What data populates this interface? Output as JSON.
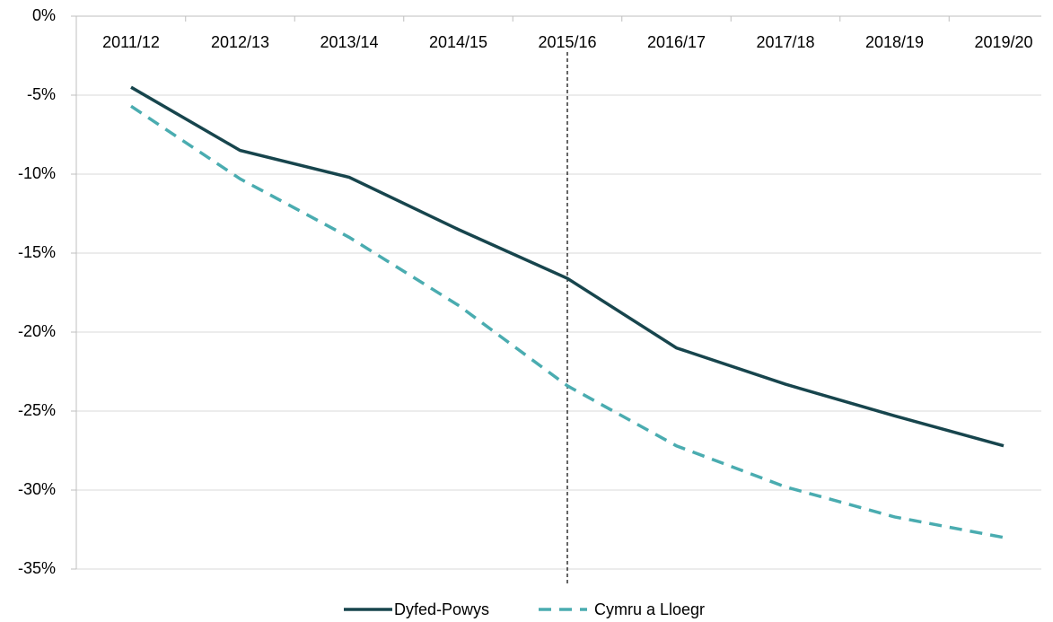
{
  "chart_data": {
    "type": "line",
    "categories": [
      "2011/12",
      "2012/13",
      "2013/14",
      "2014/15",
      "2015/16",
      "2016/17",
      "2017/18",
      "2018/19",
      "2019/20"
    ],
    "series": [
      {
        "name": "Dyfed-Powys",
        "color": "#17454d",
        "dash": false,
        "values": [
          -4.5,
          -8.5,
          -10.2,
          -13.5,
          -16.6,
          -21.0,
          -23.3,
          -25.3,
          -27.2
        ]
      },
      {
        "name": "Cymru a Lloegr",
        "color": "#4aacb0",
        "dash": true,
        "values": [
          -5.7,
          -10.3,
          -14.0,
          -18.3,
          -23.4,
          -27.2,
          -29.8,
          -31.7,
          -33.0
        ]
      }
    ],
    "ylim": [
      -35,
      0
    ],
    "yticks": [
      {
        "value": 0,
        "label": "0%"
      },
      {
        "value": -5,
        "label": "-5%"
      },
      {
        "value": -10,
        "label": "-10%"
      },
      {
        "value": -15,
        "label": "-15%"
      },
      {
        "value": -20,
        "label": "-20%"
      },
      {
        "value": -25,
        "label": "-25%"
      },
      {
        "value": -30,
        "label": "-30%"
      },
      {
        "value": -35,
        "label": "-35%"
      }
    ],
    "grid": true,
    "legend": "bottom"
  }
}
